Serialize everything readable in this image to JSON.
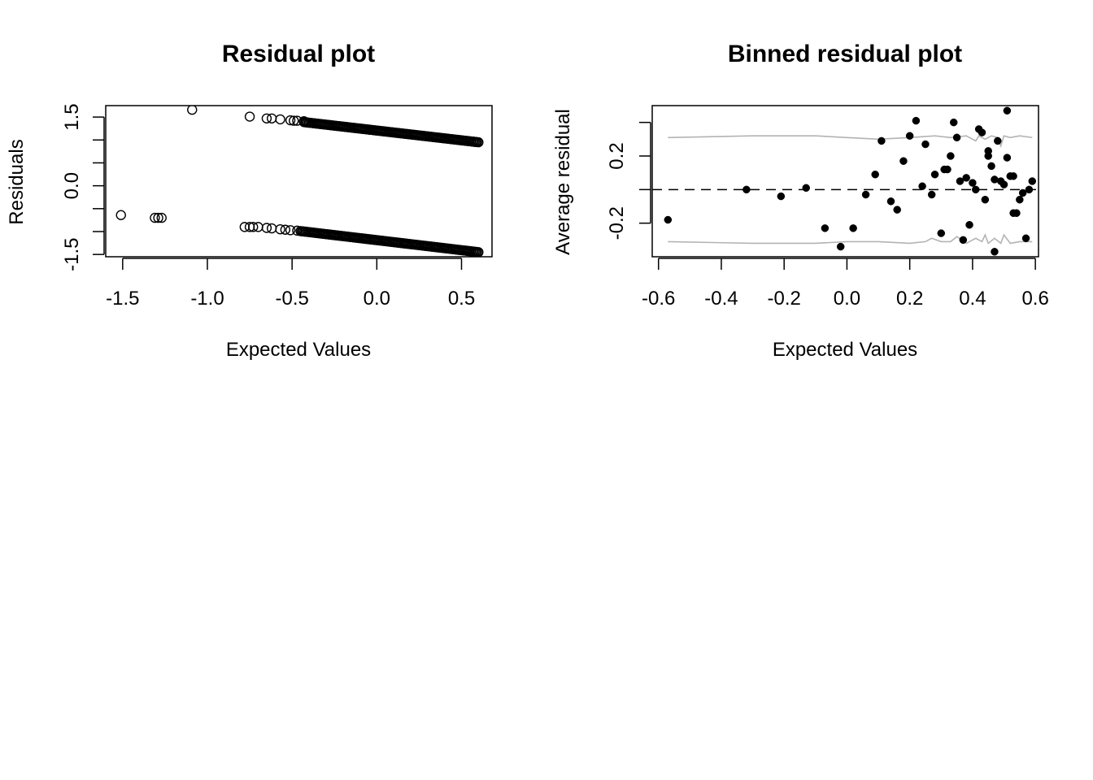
{
  "colors": {
    "background": "#ffffff",
    "points": "#000000",
    "bounds": "#b3b3b3",
    "axes": "#000000"
  },
  "chart_data": [
    {
      "type": "scatter",
      "title": "Residual plot",
      "xlabel": "Expected Values",
      "ylabel": "Residuals",
      "xlim": [
        -1.6,
        0.68
      ],
      "ylim": [
        -1.55,
        1.75
      ],
      "x_ticks": [
        "-1.5",
        "-1.0",
        "-0.5",
        "0.0",
        "0.5"
      ],
      "x_tick_values": [
        -1.5,
        -1.0,
        -0.5,
        0.0,
        0.5
      ],
      "y_ticks": [
        "-1.5",
        "0.0",
        "1.5"
      ],
      "y_tick_values": [
        -1.5,
        0.0,
        1.5
      ],
      "y_minor_tick_values": [
        -1.5,
        -1.0,
        -0.5,
        0.0,
        0.5,
        1.0,
        1.5
      ],
      "marker": "open-circle",
      "grid": false,
      "series": [
        {
          "points": [
            [
              -1.51,
              -0.64
            ],
            [
              -1.31,
              -0.7
            ],
            [
              -1.29,
              -0.7
            ],
            [
              -1.27,
              -0.7
            ],
            [
              -1.09,
              1.66
            ],
            [
              -0.75,
              1.51
            ],
            [
              -0.78,
              -0.9
            ],
            [
              -0.75,
              -0.9
            ],
            [
              -0.73,
              -0.9
            ],
            [
              -0.7,
              -0.9
            ],
            [
              -0.65,
              1.47
            ],
            [
              -0.62,
              1.47
            ],
            [
              -0.57,
              1.45
            ],
            [
              -0.65,
              -0.92
            ],
            [
              -0.62,
              -0.93
            ],
            [
              -0.57,
              -0.95
            ],
            [
              -0.51,
              1.43
            ],
            [
              -0.49,
              1.42
            ],
            [
              -0.47,
              1.42
            ],
            [
              -0.43,
              1.41
            ],
            [
              -0.54,
              -0.96
            ],
            [
              -0.51,
              -0.97
            ],
            [
              -0.47,
              -0.98
            ]
          ],
          "dense_segments": [
            {
              "x_start": -0.43,
              "y_start": 1.39,
              "x_end": 0.6,
              "y_end": 0.95
            },
            {
              "x_start": -0.45,
              "y_start": -0.99,
              "x_end": 0.6,
              "y_end": -1.45
            }
          ]
        }
      ]
    },
    {
      "type": "scatter",
      "title": "Binned residual plot",
      "xlabel": "Expected Values",
      "ylabel": "Average residual",
      "xlim": [
        -0.62,
        0.61
      ],
      "ylim": [
        -0.4,
        0.5
      ],
      "x_ticks": [
        "-0.6",
        "-0.4",
        "-0.2",
        "0.0",
        "0.2",
        "0.4",
        "0.6"
      ],
      "x_tick_values": [
        -0.6,
        -0.4,
        -0.2,
        0.0,
        0.2,
        0.4,
        0.6
      ],
      "y_ticks": [
        "-0.2",
        "0.2"
      ],
      "y_tick_values": [
        -0.2,
        0.2
      ],
      "y_minor_tick_values": [
        -0.2,
        0.0,
        0.2,
        0.4
      ],
      "reference_line": {
        "y": 0,
        "style": "dashed"
      },
      "marker": "filled-circle",
      "grid": false,
      "series": [
        {
          "points": [
            [
              -0.57,
              -0.18
            ],
            [
              -0.32,
              0.0
            ],
            [
              -0.21,
              -0.04
            ],
            [
              -0.13,
              0.01
            ],
            [
              -0.07,
              -0.23
            ],
            [
              -0.02,
              -0.34
            ],
            [
              0.02,
              -0.23
            ],
            [
              0.06,
              -0.03
            ],
            [
              0.09,
              0.09
            ],
            [
              0.11,
              0.29
            ],
            [
              0.14,
              -0.07
            ],
            [
              0.16,
              -0.12
            ],
            [
              0.18,
              0.17
            ],
            [
              0.2,
              0.32
            ],
            [
              0.22,
              0.41
            ],
            [
              0.24,
              0.02
            ],
            [
              0.25,
              0.27
            ],
            [
              0.27,
              -0.03
            ],
            [
              0.28,
              0.09
            ],
            [
              0.3,
              -0.26
            ],
            [
              0.31,
              0.12
            ],
            [
              0.32,
              0.12
            ],
            [
              0.33,
              0.2
            ],
            [
              0.34,
              0.4
            ],
            [
              0.35,
              0.31
            ],
            [
              0.36,
              0.05
            ],
            [
              0.37,
              -0.3
            ],
            [
              0.38,
              0.07
            ],
            [
              0.39,
              -0.21
            ],
            [
              0.4,
              0.04
            ],
            [
              0.41,
              0.0
            ],
            [
              0.42,
              0.36
            ],
            [
              0.43,
              0.34
            ],
            [
              0.44,
              -0.06
            ],
            [
              0.45,
              0.2
            ],
            [
              0.45,
              0.23
            ],
            [
              0.46,
              0.14
            ],
            [
              0.47,
              0.06
            ],
            [
              0.47,
              -0.37
            ],
            [
              0.48,
              0.29
            ],
            [
              0.49,
              0.05
            ],
            [
              0.5,
              0.03
            ],
            [
              0.51,
              0.19
            ],
            [
              0.51,
              0.47
            ],
            [
              0.52,
              0.08
            ],
            [
              0.53,
              0.08
            ],
            [
              0.53,
              -0.14
            ],
            [
              0.54,
              -0.14
            ],
            [
              0.55,
              -0.06
            ],
            [
              0.56,
              -0.02
            ],
            [
              0.57,
              -0.29
            ],
            [
              0.58,
              0.0
            ],
            [
              0.59,
              0.05
            ]
          ],
          "upper_bound": [
            [
              -0.57,
              0.31
            ],
            [
              -0.3,
              0.32
            ],
            [
              -0.1,
              0.32
            ],
            [
              0.0,
              0.31
            ],
            [
              0.1,
              0.3
            ],
            [
              0.2,
              0.31
            ],
            [
              0.28,
              0.32
            ],
            [
              0.33,
              0.31
            ],
            [
              0.38,
              0.32
            ],
            [
              0.41,
              0.29
            ],
            [
              0.42,
              0.32
            ],
            [
              0.44,
              0.3
            ],
            [
              0.46,
              0.32
            ],
            [
              0.48,
              0.31
            ],
            [
              0.49,
              0.26
            ],
            [
              0.5,
              0.32
            ],
            [
              0.52,
              0.31
            ],
            [
              0.55,
              0.32
            ],
            [
              0.59,
              0.31
            ]
          ],
          "lower_bound": [
            [
              -0.57,
              -0.31
            ],
            [
              -0.3,
              -0.32
            ],
            [
              -0.1,
              -0.32
            ],
            [
              0.0,
              -0.31
            ],
            [
              0.1,
              -0.31
            ],
            [
              0.2,
              -0.32
            ],
            [
              0.25,
              -0.31
            ],
            [
              0.27,
              -0.29
            ],
            [
              0.3,
              -0.31
            ],
            [
              0.33,
              -0.31
            ],
            [
              0.35,
              -0.28
            ],
            [
              0.38,
              -0.32
            ],
            [
              0.41,
              -0.29
            ],
            [
              0.43,
              -0.31
            ],
            [
              0.44,
              -0.27
            ],
            [
              0.45,
              -0.32
            ],
            [
              0.47,
              -0.29
            ],
            [
              0.49,
              -0.32
            ],
            [
              0.5,
              -0.27
            ],
            [
              0.52,
              -0.32
            ],
            [
              0.55,
              -0.31
            ],
            [
              0.59,
              -0.31
            ]
          ]
        }
      ]
    }
  ]
}
